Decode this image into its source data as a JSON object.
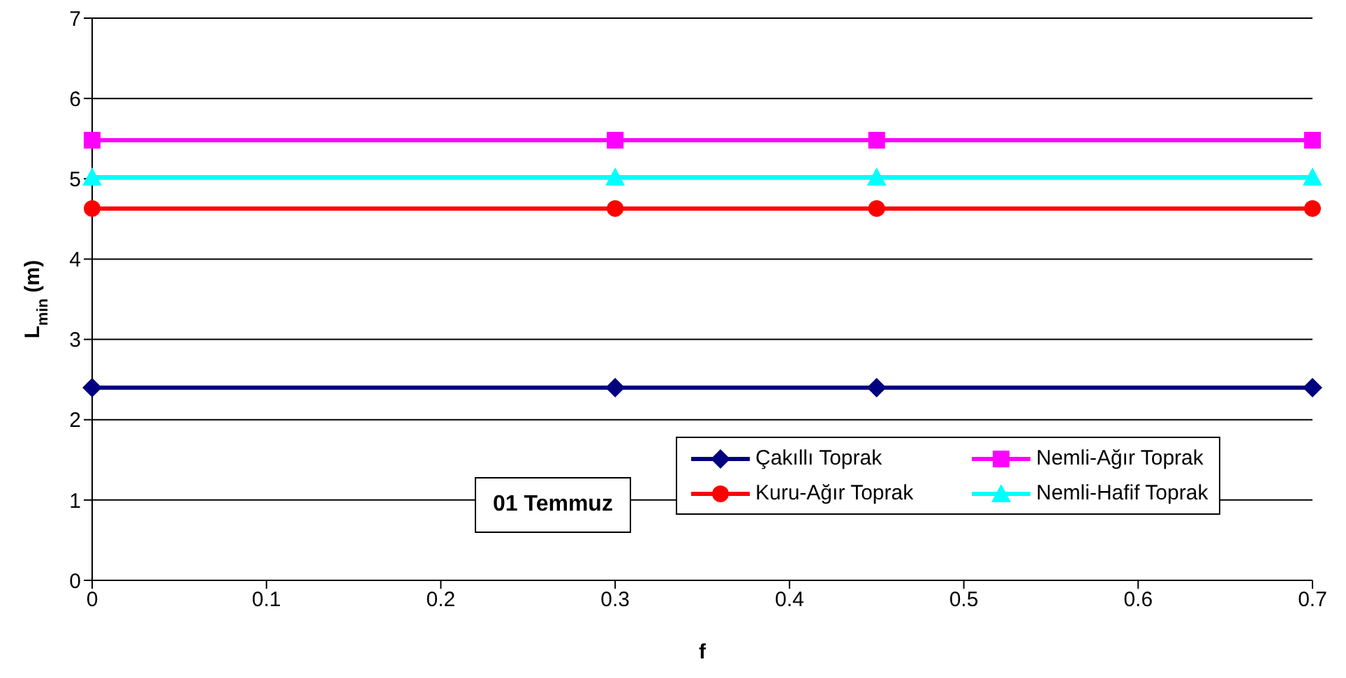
{
  "chart_data": {
    "type": "line",
    "xlabel": "f",
    "ylabel": "L$_{min}$ (m)",
    "x": [
      0,
      0.3,
      0.45,
      0.7
    ],
    "xlim": [
      0,
      0.7
    ],
    "xticks": [
      0,
      0.1,
      0.2,
      0.3,
      0.4,
      0.5,
      0.6,
      0.7
    ],
    "ylim": [
      0,
      7
    ],
    "yticks": [
      0,
      1,
      2,
      3,
      4,
      5,
      6,
      7
    ],
    "grid": "y",
    "legend": "bottom right",
    "line_style": "solid",
    "annotations": [
      "01 Temmuz"
    ],
    "series": [
      {
        "name": "Çakıllı Toprak",
        "color": "#000080",
        "marker": "diamond",
        "values": [
          2.4,
          2.4,
          2.4,
          2.4
        ]
      },
      {
        "name": "Nemli-Ağır Toprak",
        "color": "#ff00ff",
        "marker": "square",
        "values": [
          5.48,
          5.48,
          5.48,
          5.48
        ]
      },
      {
        "name": "Kuru-Ağır Toprak",
        "color": "#ff0000",
        "marker": "circle",
        "values": [
          4.63,
          4.63,
          4.63,
          4.63
        ]
      },
      {
        "name": "Nemli-Hafif Toprak",
        "color": "#00ffff",
        "marker": "triangle",
        "values": [
          5.02,
          5.02,
          5.02,
          5.02
        ]
      }
    ]
  }
}
